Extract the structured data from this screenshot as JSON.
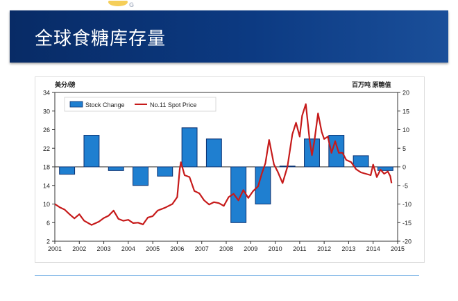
{
  "slide": {
    "title": "全球食糖库存量"
  },
  "colors": {
    "banner": "#0c3a82",
    "bar_fill": "#1f7fd0",
    "bar_stroke": "#0a2f6e",
    "line": "#c61a1a"
  },
  "chart_data": {
    "type": "bar+line",
    "left_axis": {
      "label": "美分/磅",
      "ylim": [
        2,
        34
      ],
      "ticks": [
        2,
        6,
        10,
        14,
        18,
        22,
        26,
        30,
        34
      ]
    },
    "right_axis": {
      "label": "百万吨 原糖值",
      "ylim": [
        -20,
        20
      ],
      "ticks": [
        -20,
        -15,
        -10,
        -5,
        0,
        5,
        10,
        15,
        20
      ]
    },
    "x_axis": {
      "ticks": [
        "2001",
        "2002",
        "2003",
        "2004",
        "2005",
        "2006",
        "2007",
        "2008",
        "2009",
        "2010",
        "2011",
        "2012",
        "2013",
        "2014",
        "2015"
      ],
      "range": [
        2001,
        2015
      ]
    },
    "legend": {
      "placement": "top-left",
      "entries": [
        "Stock Change",
        "No.11 Spot Price"
      ]
    },
    "series": [
      {
        "name": "Stock Change",
        "type": "bar",
        "axis": "right",
        "x": [
          2001.5,
          2002.5,
          2003.5,
          2004.5,
          2005.5,
          2006.5,
          2007.5,
          2008.5,
          2009.5,
          2010.5,
          2011.5,
          2012.5,
          2013.5,
          2014.5
        ],
        "values": [
          -2,
          8.5,
          -1,
          -5,
          -2.5,
          10.5,
          7.5,
          -15,
          -10,
          0.2,
          7.5,
          8.5,
          3,
          -1
        ]
      },
      {
        "name": "No.11 Spot Price",
        "type": "line",
        "axis": "left",
        "points": [
          [
            2001.0,
            10.0
          ],
          [
            2001.2,
            9.3
          ],
          [
            2001.4,
            8.8
          ],
          [
            2001.6,
            7.8
          ],
          [
            2001.8,
            6.9
          ],
          [
            2002.0,
            7.8
          ],
          [
            2002.2,
            6.4
          ],
          [
            2002.5,
            5.5
          ],
          [
            2002.8,
            6.2
          ],
          [
            2003.0,
            7.0
          ],
          [
            2003.2,
            7.5
          ],
          [
            2003.4,
            8.6
          ],
          [
            2003.6,
            6.8
          ],
          [
            2003.8,
            6.4
          ],
          [
            2004.0,
            6.6
          ],
          [
            2004.2,
            5.9
          ],
          [
            2004.4,
            6.0
          ],
          [
            2004.6,
            5.6
          ],
          [
            2004.8,
            7.1
          ],
          [
            2005.0,
            7.4
          ],
          [
            2005.2,
            8.6
          ],
          [
            2005.5,
            9.2
          ],
          [
            2005.8,
            10.0
          ],
          [
            2006.0,
            11.5
          ],
          [
            2006.1,
            17.5
          ],
          [
            2006.15,
            19.0
          ],
          [
            2006.3,
            16.2
          ],
          [
            2006.5,
            15.8
          ],
          [
            2006.7,
            12.8
          ],
          [
            2006.9,
            12.3
          ],
          [
            2007.1,
            10.8
          ],
          [
            2007.3,
            9.9
          ],
          [
            2007.5,
            10.4
          ],
          [
            2007.7,
            10.2
          ],
          [
            2007.9,
            9.6
          ],
          [
            2008.1,
            11.5
          ],
          [
            2008.3,
            12.2
          ],
          [
            2008.5,
            10.8
          ],
          [
            2008.7,
            13.0
          ],
          [
            2008.9,
            11.3
          ],
          [
            2009.1,
            12.8
          ],
          [
            2009.3,
            13.8
          ],
          [
            2009.45,
            16.5
          ],
          [
            2009.6,
            18.8
          ],
          [
            2009.75,
            23.8
          ],
          [
            2009.95,
            18.5
          ],
          [
            2010.1,
            17.0
          ],
          [
            2010.3,
            14.5
          ],
          [
            2010.5,
            18.0
          ],
          [
            2010.7,
            25.0
          ],
          [
            2010.85,
            27.5
          ],
          [
            2011.0,
            24.5
          ],
          [
            2011.1,
            29.0
          ],
          [
            2011.25,
            31.5
          ],
          [
            2011.4,
            24.0
          ],
          [
            2011.5,
            20.5
          ],
          [
            2011.6,
            23.5
          ],
          [
            2011.75,
            29.5
          ],
          [
            2011.9,
            25.5
          ],
          [
            2012.0,
            24.0
          ],
          [
            2012.15,
            24.5
          ],
          [
            2012.3,
            21.0
          ],
          [
            2012.45,
            23.5
          ],
          [
            2012.6,
            21.0
          ],
          [
            2012.75,
            21.0
          ],
          [
            2012.9,
            19.5
          ],
          [
            2013.1,
            19.0
          ],
          [
            2013.3,
            17.5
          ],
          [
            2013.5,
            16.8
          ],
          [
            2013.7,
            16.5
          ],
          [
            2013.9,
            16.2
          ],
          [
            2014.0,
            18.5
          ],
          [
            2014.15,
            15.8
          ],
          [
            2014.3,
            17.4
          ],
          [
            2014.45,
            16.5
          ],
          [
            2014.6,
            17.0
          ],
          [
            2014.7,
            16.0
          ],
          [
            2014.75,
            14.5
          ]
        ]
      }
    ]
  }
}
